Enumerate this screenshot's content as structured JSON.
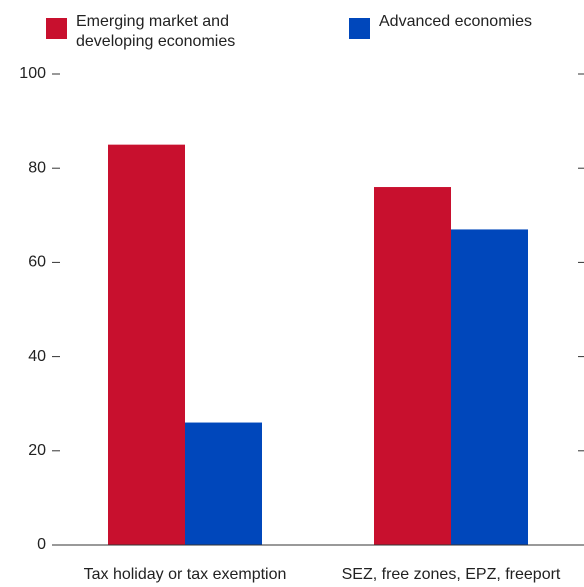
{
  "chart_data": {
    "type": "bar",
    "categories": [
      "Tax holiday or tax exemption",
      "SEZ, free zones, EPZ, freeport"
    ],
    "series": [
      {
        "name": "Emerging market and developing economies",
        "color": "#c8102e",
        "values": [
          85,
          76
        ]
      },
      {
        "name": "Advanced economies",
        "color": "#0047bb",
        "values": [
          26,
          67
        ]
      }
    ],
    "ylim": [
      0,
      100
    ],
    "yticks": [
      0,
      20,
      40,
      60,
      80,
      100
    ]
  }
}
